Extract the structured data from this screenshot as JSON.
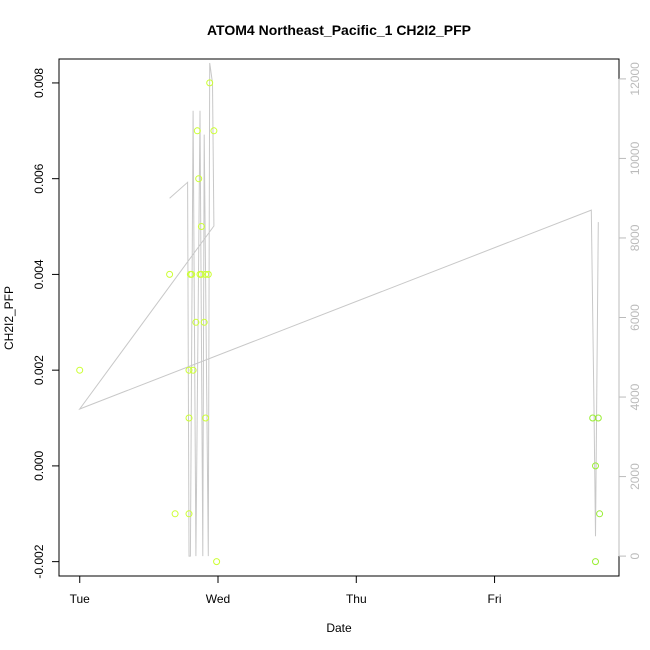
{
  "chart_data": {
    "type": "scatter",
    "title": "ATOM4 Northeast_Pacific_1 CH2I2_PFP",
    "xlabel": "Date",
    "ylabel": "CH2I2_PFP",
    "x_ticks": [
      "Tue",
      "Wed",
      "Thu",
      "Fri"
    ],
    "xlim_days": [
      -0.15,
      3.9
    ],
    "ylim": [
      -0.0023,
      0.0085
    ],
    "y_ticks": [
      -0.002,
      0.0,
      0.002,
      0.004,
      0.006,
      0.008
    ],
    "y_tick_labels": [
      "-0.002",
      "0.000",
      "0.002",
      "0.004",
      "0.006",
      "0.008"
    ],
    "y2_ticks": [
      0,
      2000,
      4000,
      6000,
      8000,
      10000,
      12000
    ],
    "y2_tick_labels": [
      "0",
      "2000",
      "4000",
      "6000",
      "8000",
      "10000",
      "12000"
    ],
    "y2lim": [
      -500,
      12500
    ],
    "grid": false,
    "colors": {
      "points_early": "#ccff33",
      "points_late": "#99ee33",
      "altitude_line": "#c8c8c8",
      "right_axis": "#bbbbbb"
    },
    "points": [
      {
        "x": 0.0,
        "y": 0.002
      },
      {
        "x": 0.65,
        "y": 0.004
      },
      {
        "x": 0.69,
        "y": -0.001
      },
      {
        "x": 0.79,
        "y": 0.002
      },
      {
        "x": 0.79,
        "y": 0.001
      },
      {
        "x": 0.79,
        "y": -0.001
      },
      {
        "x": 0.8,
        "y": 0.004
      },
      {
        "x": 0.81,
        "y": 0.004
      },
      {
        "x": 0.82,
        "y": 0.002
      },
      {
        "x": 0.84,
        "y": 0.003
      },
      {
        "x": 0.85,
        "y": 0.007
      },
      {
        "x": 0.86,
        "y": 0.006
      },
      {
        "x": 0.87,
        "y": 0.004
      },
      {
        "x": 0.88,
        "y": 0.004
      },
      {
        "x": 0.88,
        "y": 0.005
      },
      {
        "x": 0.9,
        "y": 0.003
      },
      {
        "x": 0.91,
        "y": 0.004
      },
      {
        "x": 0.91,
        "y": 0.001
      },
      {
        "x": 0.93,
        "y": 0.004
      },
      {
        "x": 0.94,
        "y": 0.008
      },
      {
        "x": 0.97,
        "y": 0.007
      },
      {
        "x": 0.99,
        "y": -0.002
      },
      {
        "x": 3.71,
        "y": 0.001
      },
      {
        "x": 3.73,
        "y": 0.0
      },
      {
        "x": 3.73,
        "y": -0.002
      },
      {
        "x": 3.75,
        "y": 0.001
      },
      {
        "x": 3.76,
        "y": -0.001
      }
    ],
    "altitude_series": [
      {
        "x": 0.65,
        "alt": 9000
      },
      {
        "x": 0.78,
        "alt": 9400
      },
      {
        "x": 0.79,
        "alt": 0
      },
      {
        "x": 0.8,
        "alt": 0
      },
      {
        "x": 0.82,
        "alt": 11200
      },
      {
        "x": 0.84,
        "alt": 0
      },
      {
        "x": 0.87,
        "alt": 11200
      },
      {
        "x": 0.89,
        "alt": 0
      },
      {
        "x": 0.9,
        "alt": 10600
      },
      {
        "x": 0.93,
        "alt": 0
      },
      {
        "x": 0.94,
        "alt": 12400
      },
      {
        "x": 0.96,
        "alt": 11900
      },
      {
        "x": 0.97,
        "alt": 8300
      },
      {
        "x": 0.0,
        "alt": 3700
      },
      {
        "x": 3.7,
        "alt": 8700
      },
      {
        "x": 3.72,
        "alt": 3500
      },
      {
        "x": 3.73,
        "alt": 500
      },
      {
        "x": 3.75,
        "alt": 8400
      }
    ]
  }
}
